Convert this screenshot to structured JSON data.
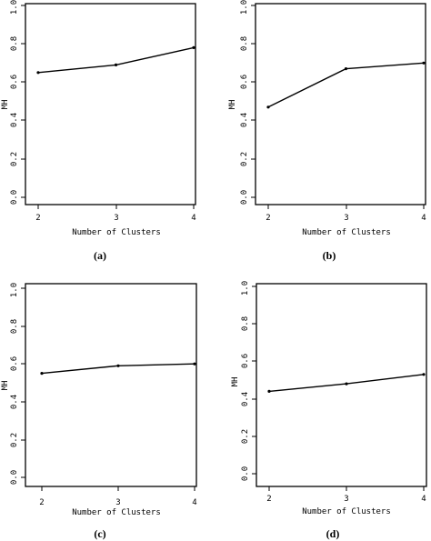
{
  "chart_data": [
    {
      "type": "line",
      "caption": "(a)",
      "x": [
        2,
        3,
        4
      ],
      "values": [
        0.65,
        0.69,
        0.78
      ],
      "xlabel": "Number of Clusters",
      "ylabel": "MH",
      "xticks": [
        "2",
        "3",
        "4"
      ],
      "yticks": [
        "0.0",
        "0.2",
        "0.4",
        "0.6",
        "0.8",
        "1.0"
      ],
      "xlim": [
        2,
        4
      ],
      "ylim": [
        0,
        1
      ],
      "grid": false
    },
    {
      "type": "line",
      "caption": "(b)",
      "x": [
        2,
        3,
        4
      ],
      "values": [
        0.47,
        0.67,
        0.7
      ],
      "xlabel": "Number of Clusters",
      "ylabel": "MH",
      "xticks": [
        "2",
        "3",
        "4"
      ],
      "yticks": [
        "0.0",
        "0.2",
        "0.4",
        "0.6",
        "0.8",
        "1.0"
      ],
      "xlim": [
        2,
        4
      ],
      "ylim": [
        0,
        1
      ],
      "grid": false
    },
    {
      "type": "line",
      "caption": "(c)",
      "x": [
        2,
        3,
        4
      ],
      "values": [
        0.55,
        0.59,
        0.6
      ],
      "xlabel": "Number of Clusters",
      "ylabel": "MH",
      "xticks": [
        "2",
        "3",
        "4"
      ],
      "yticks": [
        "0.0",
        "0.2",
        "0.4",
        "0.6",
        "0.8",
        "1.0"
      ],
      "xlim": [
        2,
        4
      ],
      "ylim": [
        0,
        1
      ],
      "grid": false
    },
    {
      "type": "line",
      "caption": "(d)",
      "x": [
        2,
        3,
        4
      ],
      "values": [
        0.44,
        0.48,
        0.53
      ],
      "xlabel": "Number of Clusters",
      "ylabel": "MH",
      "xticks": [
        "2",
        "3",
        "4"
      ],
      "yticks": [
        "0.0",
        "0.2",
        "0.4",
        "0.6",
        "0.8",
        "1.0"
      ],
      "xlim": [
        2,
        4
      ],
      "ylim": [
        0,
        1
      ],
      "grid": false
    }
  ]
}
